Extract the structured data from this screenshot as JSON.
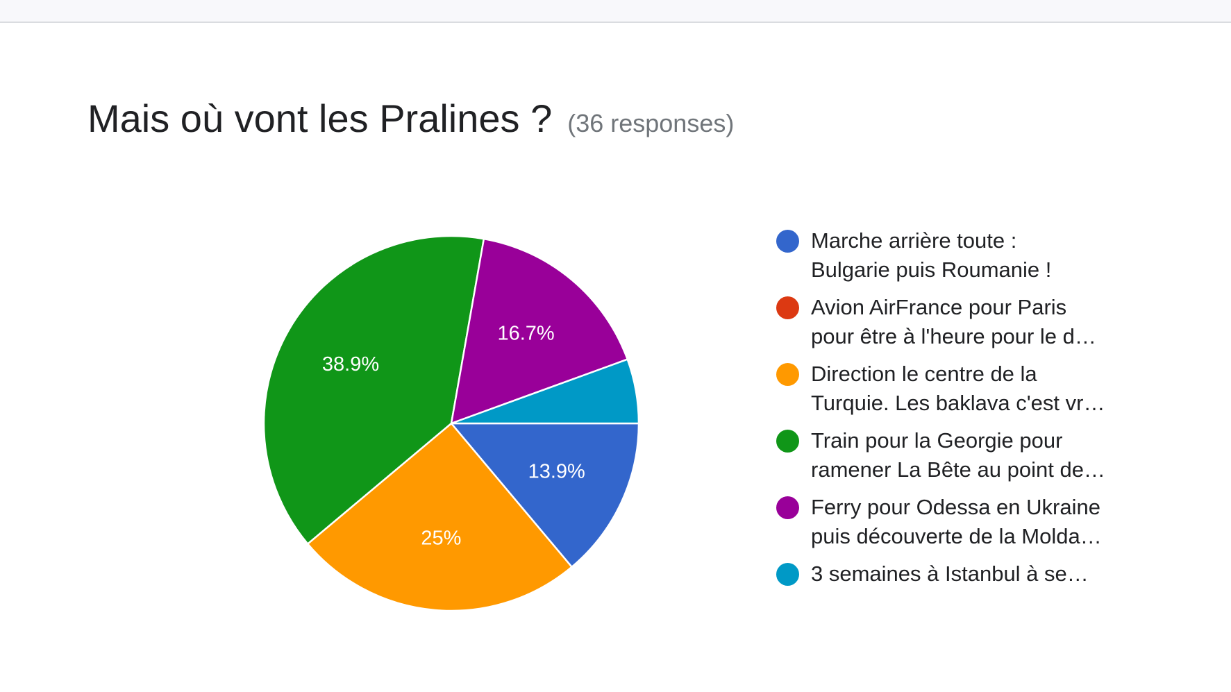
{
  "header": {
    "title": "Mais où vont les Pralines ?",
    "subtitle": "(36 responses)"
  },
  "chart_data": {
    "type": "pie",
    "title": "Mais où vont les Pralines ?",
    "subtitle": "(36 responses)",
    "total_responses": 36,
    "legend_position": "right",
    "start_angle_note": "slices drawn clockwise starting at 3 o'clock",
    "slices": [
      {
        "label": "Marche arrière toute : Bulgarie puis Roumanie !",
        "legend_lines": "Marche arrière toute :\nBulgarie puis Roumanie !",
        "count": 5,
        "percent": 13.9,
        "percent_label": "13.9%",
        "color": "#3366cc"
      },
      {
        "label": "Avion AirFrance pour Paris pour être à l'heure pour le d…",
        "legend_lines": "Avion AirFrance pour Paris\npour être à l'heure pour le d…",
        "count": 0,
        "percent": 0,
        "percent_label": "",
        "color": "#dc3912"
      },
      {
        "label": "Direction le centre de la Turquie. Les baklava c'est vr…",
        "legend_lines": "Direction le centre de la\nTurquie. Les baklava c'est vr…",
        "count": 9,
        "percent": 25,
        "percent_label": "25%",
        "color": "#ff9900"
      },
      {
        "label": "Train pour la Georgie pour ramener La Bête au point de…",
        "legend_lines": "Train pour la Georgie pour\nramener La Bête au point de…",
        "count": 14,
        "percent": 38.9,
        "percent_label": "38.9%",
        "color": "#109618"
      },
      {
        "label": "Ferry pour Odessa en Ukraine puis découverte de la Molda…",
        "legend_lines": "Ferry pour Odessa en Ukraine\npuis découverte de la Molda…",
        "count": 6,
        "percent": 16.7,
        "percent_label": "16.7%",
        "color": "#990099"
      },
      {
        "label": "3 semaines à Istanbul à se…",
        "legend_lines": "3 semaines à Istanbul à se…",
        "count": 2,
        "percent": 5.6,
        "percent_label": "",
        "color": "#0099c6"
      }
    ]
  }
}
